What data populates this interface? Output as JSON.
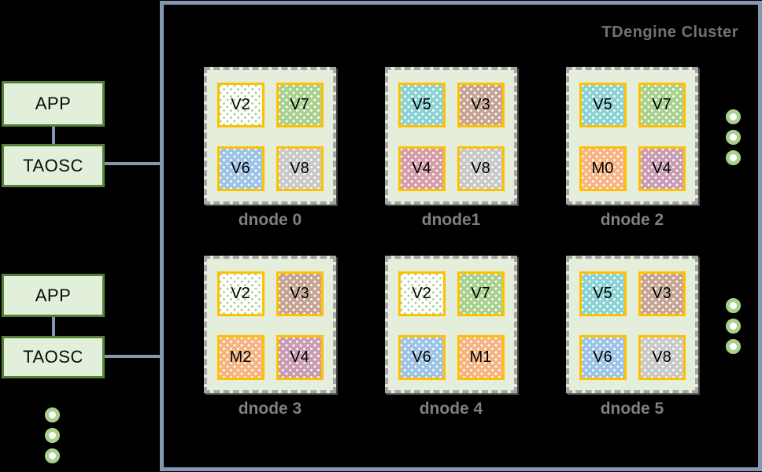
{
  "colors": {
    "background": "#000000",
    "app_box_fill": "#e2efda",
    "app_box_border": "#538135",
    "connector": "#8497b0",
    "cluster_border": "#8497b0",
    "cluster_title": "#767171",
    "dnode_fill": "#e4eeda",
    "dnode_border": "#a6a6a6",
    "dnode_label": "#7f7f7f",
    "vnode_border": "#ffc000",
    "ellipsis_ring": "#a9d18e"
  },
  "app_stacks": [
    {
      "app": "APP",
      "taosc": "TAOSC"
    },
    {
      "app": "APP",
      "taosc": "TAOSC"
    }
  ],
  "ellipsis": {
    "left_count": 3,
    "cluster_top_count": 3,
    "cluster_bottom_count": 3
  },
  "cluster": {
    "title": "TDengine Cluster",
    "dnodes": [
      {
        "label": "dnode 0",
        "vnodes": [
          {
            "label": "V2",
            "fill": "#ffffff",
            "dot": "#a9d18e"
          },
          {
            "label": "V7",
            "fill": "#a9d18e",
            "dot": "#ffffff"
          },
          {
            "label": "V6",
            "fill": "#9dc3e6",
            "dot": "#ffffff"
          },
          {
            "label": "V8",
            "fill": "#c9c9c9",
            "dot": "#ffffff"
          }
        ]
      },
      {
        "label": "dnode1",
        "vnodes": [
          {
            "label": "V5",
            "fill": "#8ad2d3",
            "dot": "#ffffff"
          },
          {
            "label": "V3",
            "fill": "#c5a493",
            "dot": "#ffffff"
          },
          {
            "label": "V4",
            "fill": "#d49da9",
            "dot": "#ffffff"
          },
          {
            "label": "V8",
            "fill": "#c9c9c9",
            "dot": "#ffffff"
          }
        ]
      },
      {
        "label": "dnode 2",
        "vnodes": [
          {
            "label": "V5",
            "fill": "#8ad2d3",
            "dot": "#ffffff"
          },
          {
            "label": "V7",
            "fill": "#a9d18e",
            "dot": "#ffffff"
          },
          {
            "label": "M0",
            "fill": "#f6b482",
            "dot": "#ffffff"
          },
          {
            "label": "V4",
            "fill": "#c99cb4",
            "dot": "#ffffff"
          }
        ]
      },
      {
        "label": "dnode 3",
        "vnodes": [
          {
            "label": "V2",
            "fill": "#ffffff",
            "dot": "#a9d18e"
          },
          {
            "label": "V3",
            "fill": "#c5a493",
            "dot": "#ffffff"
          },
          {
            "label": "M2",
            "fill": "#f6b482",
            "dot": "#ffffff"
          },
          {
            "label": "V4",
            "fill": "#c99cb4",
            "dot": "#ffffff"
          }
        ]
      },
      {
        "label": "dnode 4",
        "vnodes": [
          {
            "label": "V2",
            "fill": "#ffffff",
            "dot": "#a9d18e"
          },
          {
            "label": "V7",
            "fill": "#a9d18e",
            "dot": "#ffffff"
          },
          {
            "label": "V6",
            "fill": "#9dc3e6",
            "dot": "#ffffff"
          },
          {
            "label": "M1",
            "fill": "#f6b482",
            "dot": "#ffffff"
          }
        ]
      },
      {
        "label": "dnode 5",
        "vnodes": [
          {
            "label": "V5",
            "fill": "#8ad2d3",
            "dot": "#ffffff"
          },
          {
            "label": "V3",
            "fill": "#c5a493",
            "dot": "#ffffff"
          },
          {
            "label": "V6",
            "fill": "#9dc3e6",
            "dot": "#ffffff"
          },
          {
            "label": "V8",
            "fill": "#c9c9c9",
            "dot": "#ffffff"
          }
        ]
      }
    ]
  }
}
